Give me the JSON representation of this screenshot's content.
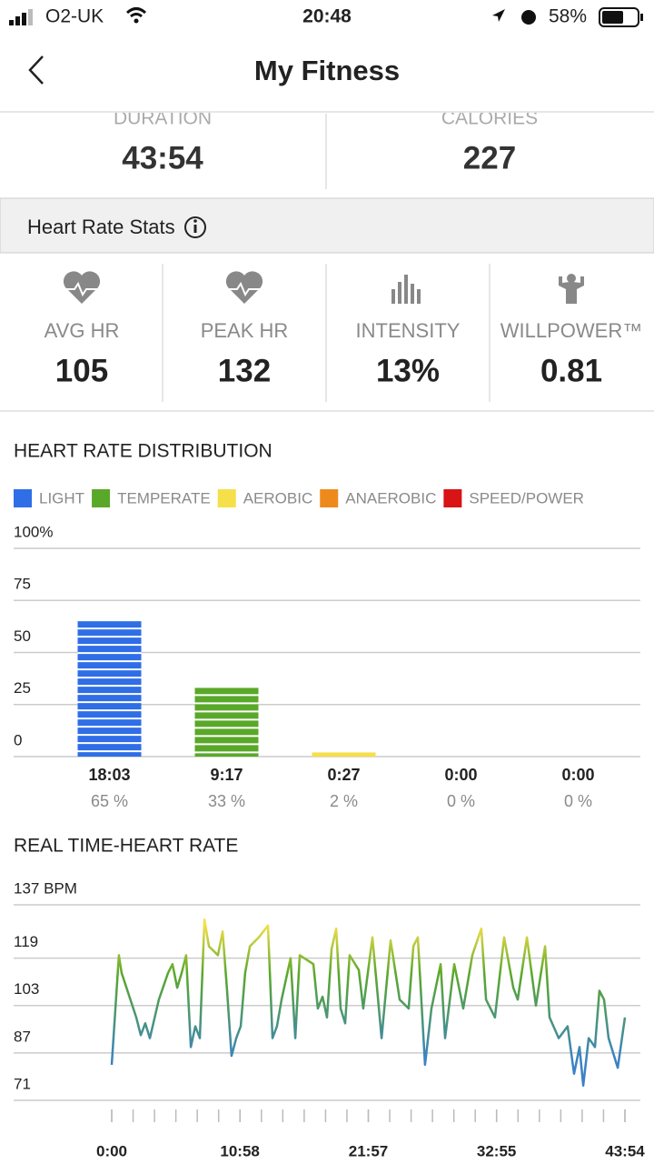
{
  "status_bar": {
    "carrier": "O2-UK",
    "time": "20:48",
    "battery": "58%"
  },
  "header": {
    "title": "My Fitness"
  },
  "summary": [
    {
      "label": "DURATION",
      "value": "43:54"
    },
    {
      "label": "CALORIES",
      "value": "227"
    }
  ],
  "heart_rate_stats": {
    "title": "Heart Rate Stats",
    "items": [
      {
        "label": "AVG HR",
        "value": "105"
      },
      {
        "label": "PEAK HR",
        "value": "132"
      },
      {
        "label": "INTENSITY",
        "value": "13%"
      },
      {
        "label": "WILLPOWER™",
        "value": "0.81"
      }
    ]
  },
  "chart_data": [
    {
      "type": "bar",
      "title": "HEART RATE DISTRIBUTION",
      "legend": [
        "LIGHT",
        "TEMPERATE",
        "AEROBIC",
        "ANAEROBIC",
        "SPEED/POWER"
      ],
      "colors": [
        "#2f6ee6",
        "#5aa82a",
        "#f5e04a",
        "#ee8a1c",
        "#d81414"
      ],
      "categories": [
        "18:03",
        "9:17",
        "0:27",
        "0:00",
        "0:00"
      ],
      "values": [
        65,
        33,
        2,
        0,
        0
      ],
      "value_labels": [
        "65 %",
        "33 %",
        "2 %",
        "0 %",
        "0 %"
      ],
      "ylim": [
        0,
        100
      ],
      "yticks": [
        0,
        25,
        50,
        75,
        {
          "value": 100,
          "label": "100%"
        }
      ],
      "grid": true
    },
    {
      "type": "line",
      "title": "REAL TIME-HEART RATE",
      "x": [
        0,
        37,
        51,
        126,
        149,
        172,
        196,
        242,
        289,
        312,
        336,
        359,
        382,
        406,
        429,
        452,
        476,
        499,
        545,
        569,
        592,
        615,
        639,
        662,
        685,
        709,
        755,
        802,
        825,
        848,
        872,
        918,
        942,
        965,
        1035,
        1058,
        1082,
        1105,
        1128,
        1152,
        1175,
        1198,
        1221,
        1268,
        1291,
        1338,
        1385,
        1431,
        1478,
        1524,
        1548,
        1571,
        1608,
        1641,
        1688,
        1711,
        1758,
        1804,
        1851,
        1897,
        1921,
        1967,
        2014,
        2061,
        2084,
        2131,
        2177,
        2224,
        2247,
        2294,
        2340,
        2373,
        2401,
        2420,
        2448,
        2480,
        2503,
        2527,
        2550,
        2597,
        2634
      ],
      "values": [
        83,
        120,
        114,
        99,
        93,
        97,
        92,
        105,
        114,
        117,
        109,
        114,
        120,
        89,
        96,
        92,
        132,
        123,
        120,
        128,
        108,
        86,
        92,
        96,
        114,
        123,
        126,
        130,
        92,
        96,
        105,
        119,
        92,
        120,
        117,
        102,
        106,
        99,
        122,
        129,
        102,
        97,
        120,
        115,
        102,
        126,
        92,
        125,
        105,
        102,
        123,
        126,
        83,
        102,
        117,
        92,
        117,
        102,
        120,
        129,
        105,
        99,
        126,
        109,
        105,
        126,
        103,
        123,
        99,
        92,
        96,
        80,
        89,
        76,
        92,
        89,
        108,
        105,
        92,
        82,
        99
      ],
      "gradient": [
        "#f5e04a",
        "#5aa82a",
        "#3b82c4"
      ],
      "xlim": [
        0,
        2634
      ],
      "xticks": [
        {
          "value": 0,
          "label": "0:00"
        },
        {
          "value": 658,
          "label": "10:58"
        },
        {
          "value": 1317,
          "label": "21:57"
        },
        {
          "value": 1975,
          "label": "32:55"
        },
        {
          "value": 2634,
          "label": "43:54"
        }
      ],
      "ylim": [
        71,
        137
      ],
      "yticks": [
        71,
        87,
        103,
        119,
        {
          "value": 137,
          "label": "137 BPM"
        }
      ],
      "grid": true
    }
  ]
}
